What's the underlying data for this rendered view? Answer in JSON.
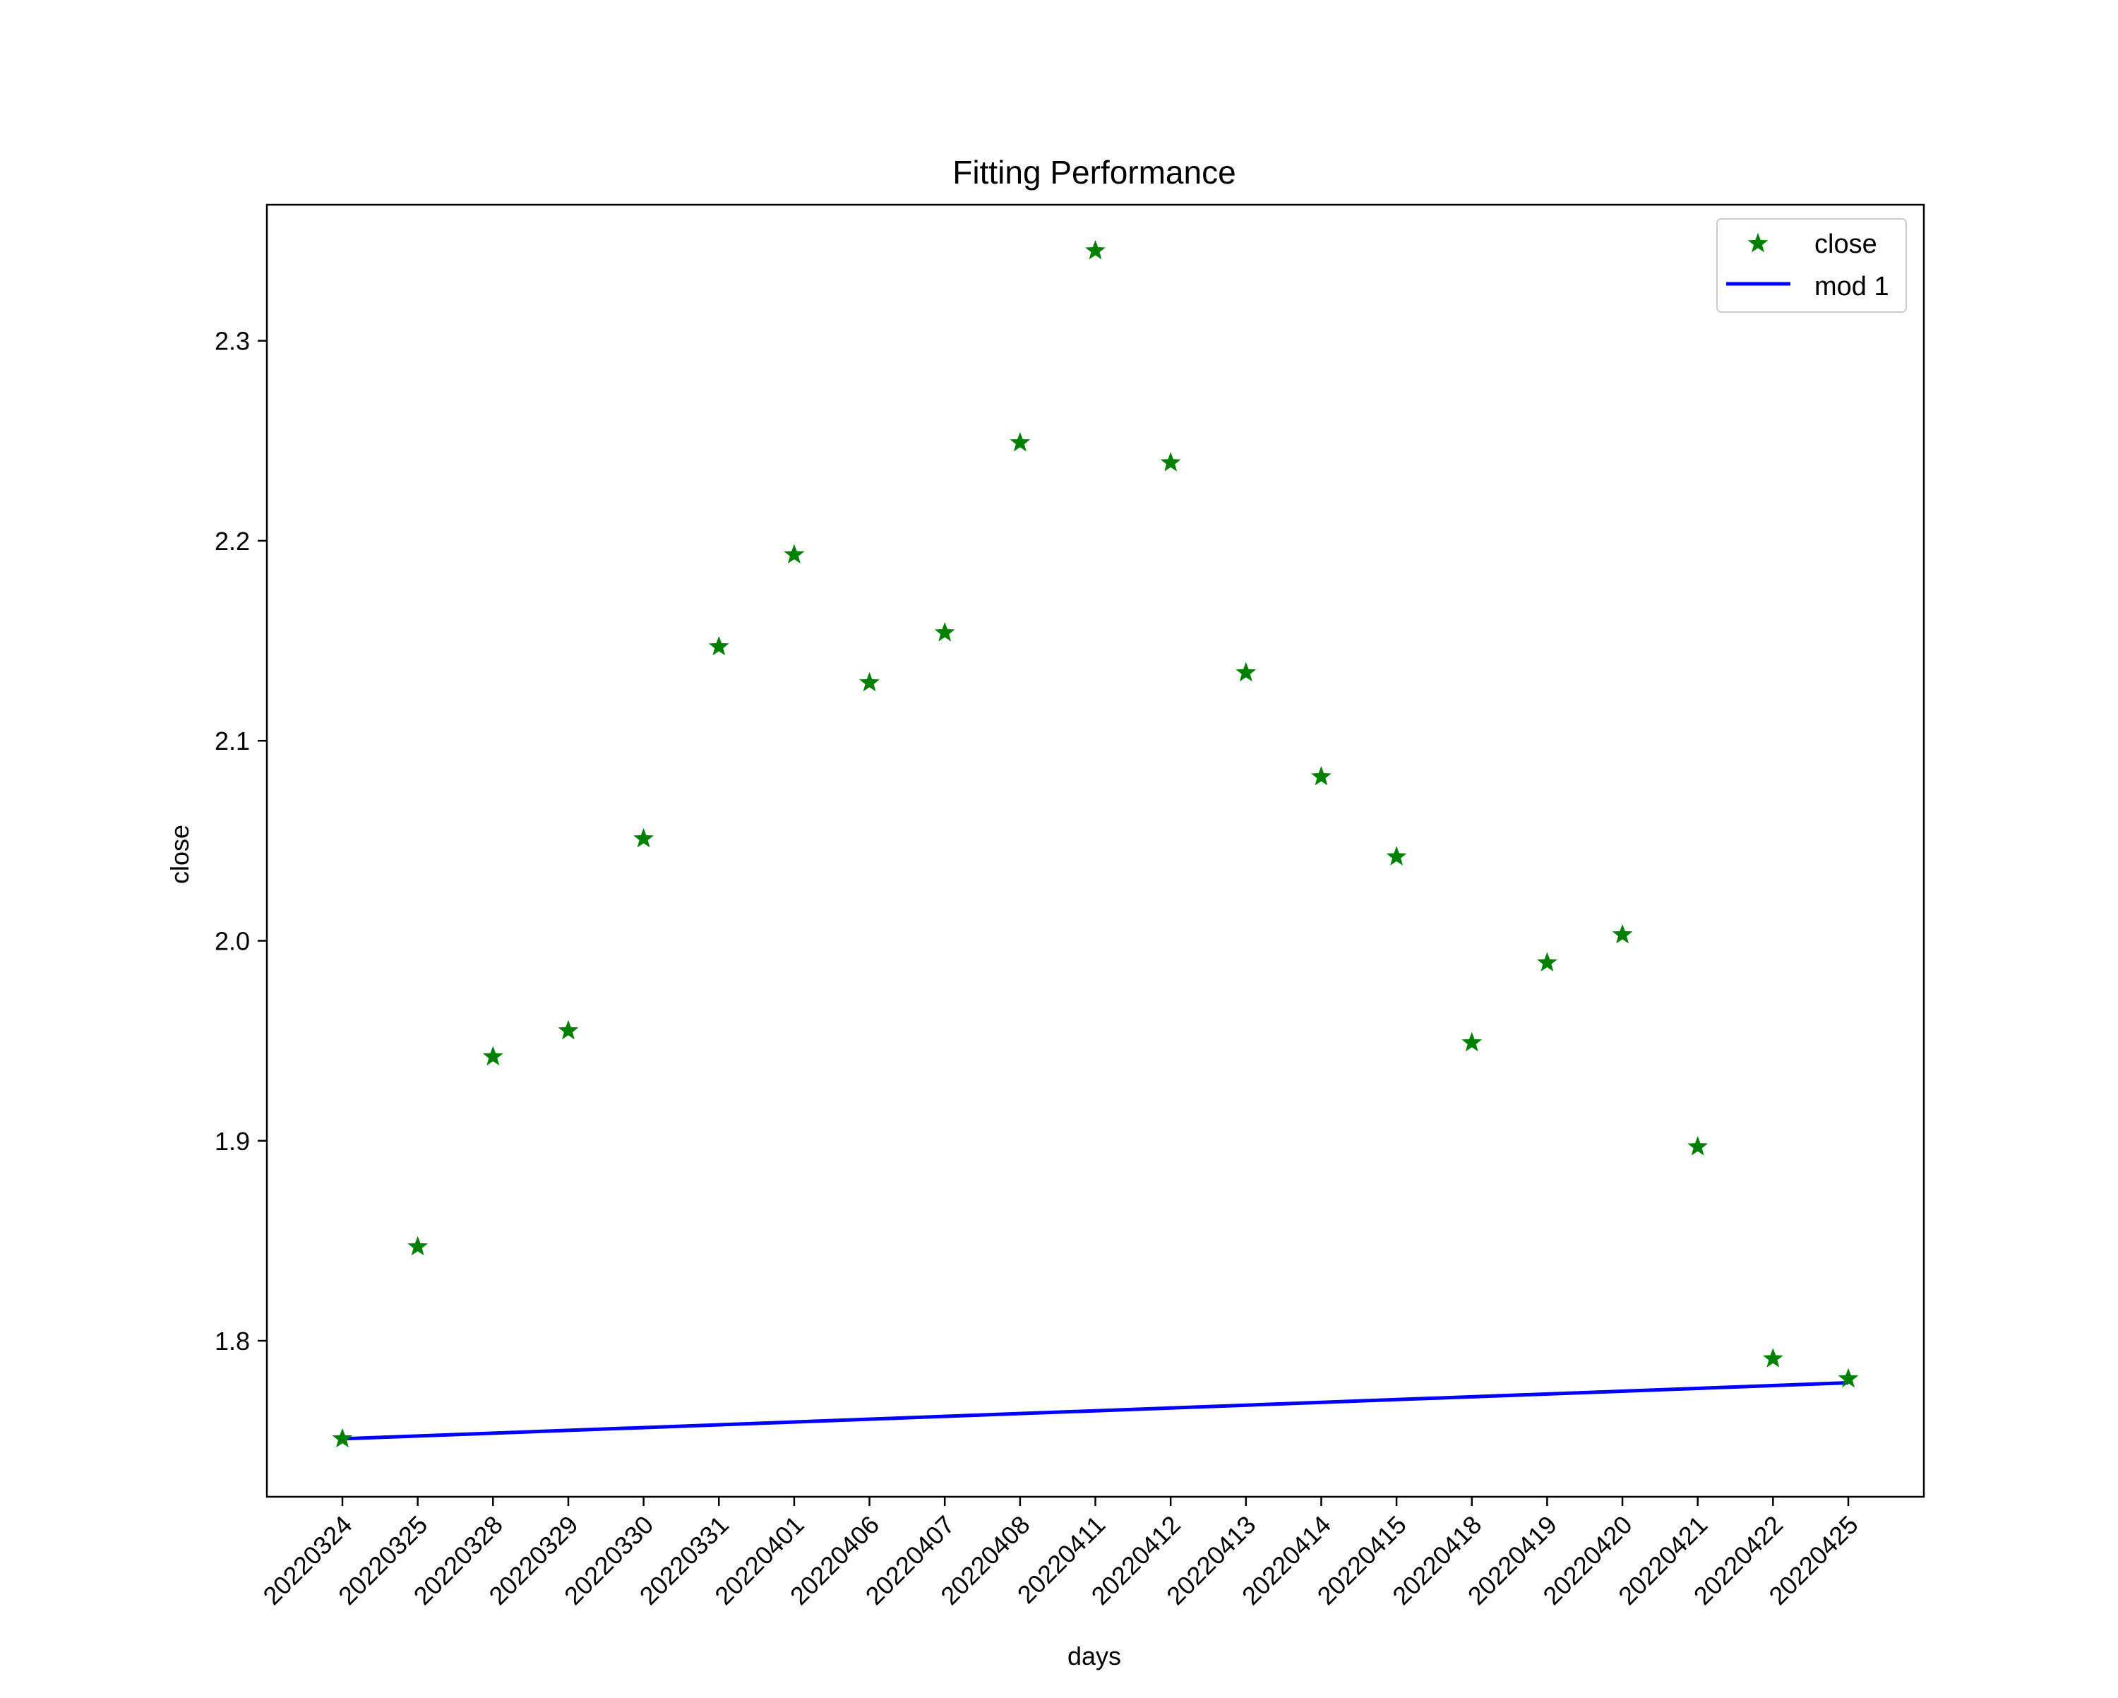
{
  "chart_data": {
    "type": "scatter",
    "title": "Fitting Performance",
    "xlabel": "days",
    "ylabel": "close",
    "categories": [
      "20220324",
      "20220325",
      "20220328",
      "20220329",
      "20220330",
      "20220331",
      "20220401",
      "20220406",
      "20220407",
      "20220408",
      "20220411",
      "20220412",
      "20220413",
      "20220414",
      "20220415",
      "20220418",
      "20220419",
      "20220420",
      "20220421",
      "20220422",
      "20220425"
    ],
    "ylim": [
      1.722,
      2.368
    ],
    "yticks": [
      1.8,
      1.9,
      2.0,
      2.1,
      2.2,
      2.3
    ],
    "grid": false,
    "legend_position": "upper right",
    "series": [
      {
        "name": "close",
        "kind": "scatter",
        "marker": "star",
        "color": "#008000",
        "values": [
          1.751,
          1.847,
          1.942,
          1.955,
          2.051,
          2.147,
          2.193,
          2.129,
          2.154,
          2.249,
          2.345,
          2.239,
          2.134,
          2.082,
          2.042,
          1.949,
          1.989,
          2.003,
          1.897,
          1.791,
          1.781
        ]
      },
      {
        "name": "mod 1",
        "kind": "line",
        "color": "#0000ff",
        "start_value": 1.751,
        "end_value": 1.779
      }
    ]
  }
}
